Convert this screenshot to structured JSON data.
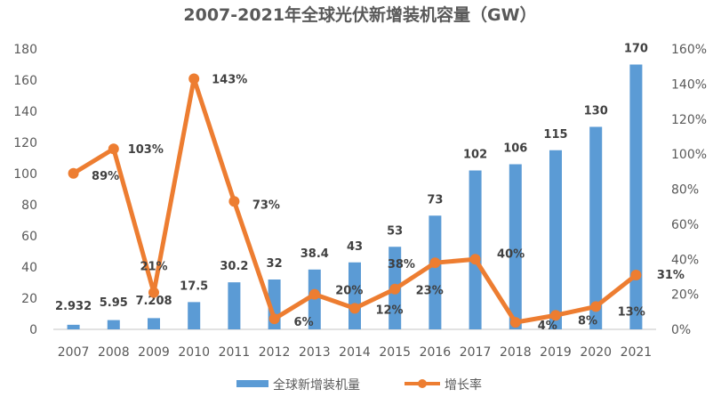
{
  "chart_data": {
    "type": "bar",
    "title": "2007-2021年全球光伏新增装机容量（GW）",
    "categories": [
      "2007",
      "2008",
      "2009",
      "2010",
      "2011",
      "2012",
      "2013",
      "2014",
      "2015",
      "2016",
      "2017",
      "2018",
      "2019",
      "2020",
      "2021"
    ],
    "series": [
      {
        "name": "全球新增装机量",
        "type": "bar",
        "axis": "left",
        "color": "#5B9BD5",
        "values": [
          2.932,
          5.95,
          7.208,
          17.5,
          30.2,
          32,
          38.4,
          43,
          53,
          73,
          102,
          106,
          115,
          130,
          170
        ],
        "labels": [
          "2.932",
          "5.95",
          "7.208",
          "17.5",
          "30.2",
          "32",
          "38.4",
          "43",
          "53",
          "73",
          "102",
          "106",
          "115",
          "130",
          "170"
        ]
      },
      {
        "name": "增长率",
        "type": "line",
        "axis": "right",
        "color": "#ED7D31",
        "values": [
          89,
          103,
          21,
          143,
          73,
          6,
          20,
          12,
          23,
          38,
          40,
          4,
          8,
          13,
          31
        ],
        "labels": [
          "89%",
          "103%",
          "21%",
          "143%",
          "73%",
          "6%",
          "20%",
          "12%",
          "23%",
          "38%",
          "40%",
          "4%",
          "8%",
          "13%",
          "31%"
        ]
      }
    ],
    "xlabel": "",
    "ylabel": "",
    "ylim": [
      0,
      180
    ],
    "yticks": [
      "0",
      "20",
      "40",
      "60",
      "80",
      "100",
      "120",
      "140",
      "160",
      "180"
    ],
    "y2lim": [
      0,
      160
    ],
    "y2ticks": [
      "0%",
      "20%",
      "40%",
      "60%",
      "80%",
      "100%",
      "120%",
      "140%",
      "160%"
    ],
    "grid": false,
    "legend": "bottom"
  }
}
